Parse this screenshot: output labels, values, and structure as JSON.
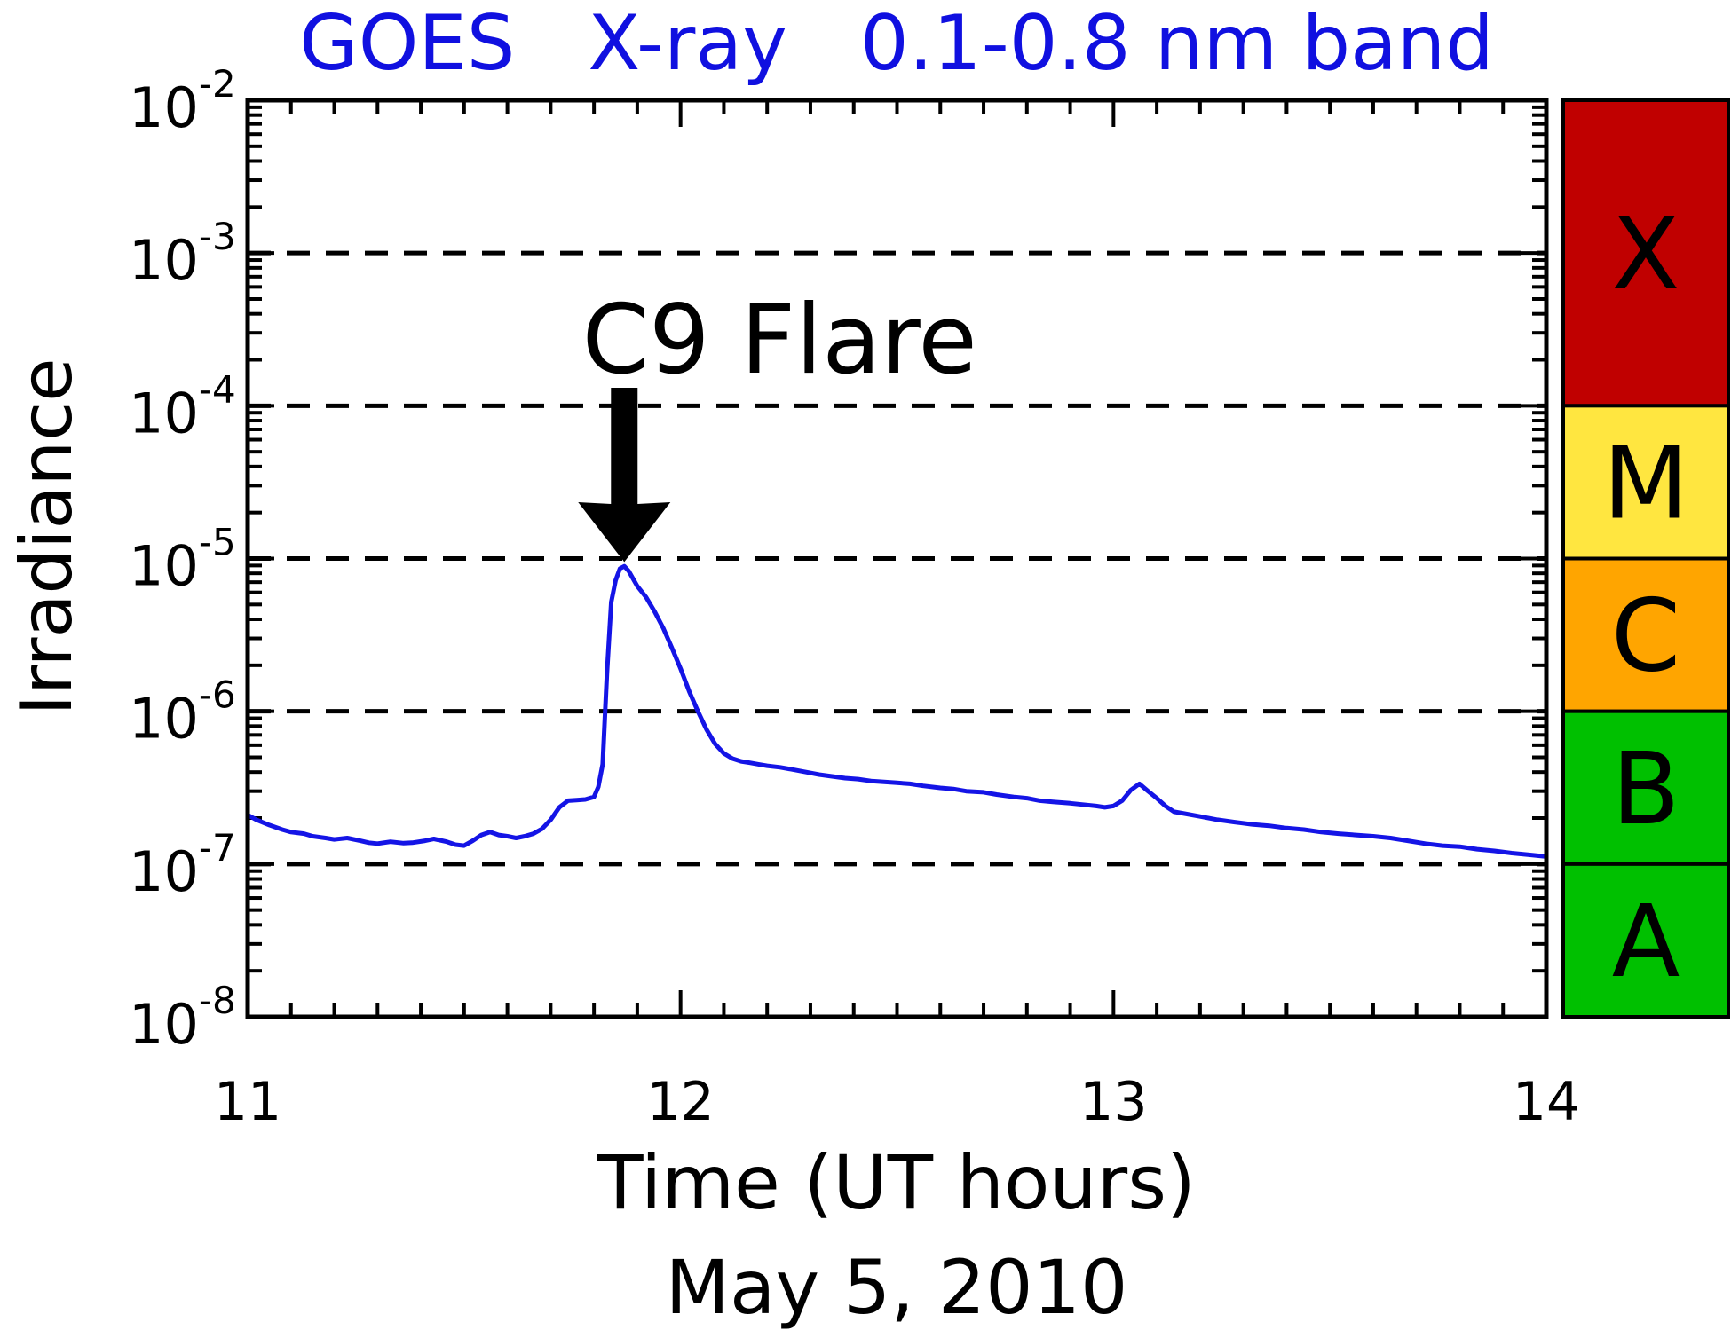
{
  "colors": {
    "title": "#1010e0",
    "series": "#1414e6",
    "axis": "#000000",
    "class_X": "#c00000",
    "class_M": "#ffe640",
    "class_C": "#ffa500",
    "class_B": "#00c000",
    "class_A": "#00c000"
  },
  "chart_data": {
    "type": "line",
    "title": "GOES   X-ray   0.1-0.8 nm band",
    "xlabel": "Time (UT hours)",
    "date_label": "May 5, 2010",
    "ylabel": "Irradiance",
    "xlim": [
      11,
      14
    ],
    "ylim": [
      1e-08,
      0.01
    ],
    "yscale": "log",
    "grid": "dashed horizontal lines at 1e-7, 1e-6, 1e-5, 1e-4, 1e-3",
    "x_ticks": [
      {
        "value": 11,
        "label": "11"
      },
      {
        "value": 12,
        "label": "12"
      },
      {
        "value": 13,
        "label": "13"
      },
      {
        "value": 14,
        "label": "14"
      }
    ],
    "y_ticks": [
      {
        "value": 1e-08,
        "base": "10",
        "exp": "-8"
      },
      {
        "value": 1e-07,
        "base": "10",
        "exp": "-7"
      },
      {
        "value": 1e-06,
        "base": "10",
        "exp": "-6"
      },
      {
        "value": 1e-05,
        "base": "10",
        "exp": "-5"
      },
      {
        "value": 0.0001,
        "base": "10",
        "exp": "-4"
      },
      {
        "value": 0.001,
        "base": "10",
        "exp": "-3"
      },
      {
        "value": 0.01,
        "base": "10",
        "exp": "-2"
      }
    ],
    "annotation": {
      "text": "C9 Flare",
      "x": 11.87,
      "y": 9e-06
    },
    "flare_classes": [
      {
        "label": "X",
        "min": 0.0001,
        "max": 0.01
      },
      {
        "label": "M",
        "min": 1e-05,
        "max": 0.0001
      },
      {
        "label": "C",
        "min": 1e-06,
        "max": 1e-05
      },
      {
        "label": "B",
        "min": 1e-07,
        "max": 1e-06
      },
      {
        "label": "A",
        "min": 1e-08,
        "max": 1e-07
      }
    ],
    "series": [
      {
        "x": [
          11.0,
          11.02,
          11.05,
          11.08,
          11.1,
          11.13,
          11.15,
          11.18,
          11.2,
          11.23,
          11.26,
          11.28,
          11.3,
          11.33,
          11.36,
          11.38,
          11.41,
          11.43,
          11.46,
          11.48,
          11.5,
          11.52,
          11.54,
          11.56,
          11.58,
          11.6,
          11.62,
          11.64,
          11.66,
          11.68,
          11.7,
          11.72,
          11.74,
          11.76,
          11.78,
          11.8,
          11.81,
          11.82,
          11.83,
          11.84,
          11.85,
          11.86,
          11.87,
          11.88,
          11.89,
          11.9,
          11.92,
          11.94,
          11.96,
          11.98,
          12.0,
          12.02,
          12.04,
          12.06,
          12.08,
          12.1,
          12.12,
          12.14,
          12.16,
          12.18,
          12.2,
          12.23,
          12.26,
          12.29,
          12.32,
          12.35,
          12.38,
          12.41,
          12.44,
          12.47,
          12.5,
          12.53,
          12.56,
          12.6,
          12.63,
          12.66,
          12.7,
          12.73,
          12.77,
          12.8,
          12.83,
          12.86,
          12.9,
          12.93,
          12.96,
          12.98,
          13.0,
          13.02,
          13.04,
          13.06,
          13.08,
          13.1,
          13.12,
          13.14,
          13.16,
          13.2,
          13.24,
          13.28,
          13.32,
          13.36,
          13.4,
          13.44,
          13.48,
          13.52,
          13.56,
          13.6,
          13.64,
          13.68,
          13.72,
          13.76,
          13.8,
          13.84,
          13.88,
          13.92,
          13.96,
          14.0
        ],
        "values": [
          2.1e-07,
          1.95e-07,
          1.8e-07,
          1.68e-07,
          1.62e-07,
          1.58e-07,
          1.52e-07,
          1.48e-07,
          1.45e-07,
          1.48e-07,
          1.42e-07,
          1.38e-07,
          1.36e-07,
          1.4e-07,
          1.37e-07,
          1.38e-07,
          1.42e-07,
          1.46e-07,
          1.4e-07,
          1.34e-07,
          1.32e-07,
          1.42e-07,
          1.55e-07,
          1.62e-07,
          1.55e-07,
          1.52e-07,
          1.48e-07,
          1.52e-07,
          1.58e-07,
          1.7e-07,
          1.95e-07,
          2.35e-07,
          2.6e-07,
          2.62e-07,
          2.65e-07,
          2.75e-07,
          3.2e-07,
          4.5e-07,
          1.8e-06,
          5.2e-06,
          7.2e-06,
          8.6e-06,
          8.9e-06,
          8.3e-06,
          7.4e-06,
          6.6e-06,
          5.6e-06,
          4.5e-06,
          3.5e-06,
          2.6e-06,
          1.9e-06,
          1.35e-06,
          1e-06,
          7.6e-07,
          6.1e-07,
          5.3e-07,
          4.9e-07,
          4.7e-07,
          4.6e-07,
          4.5e-07,
          4.4e-07,
          4.3e-07,
          4.15e-07,
          4e-07,
          3.85e-07,
          3.75e-07,
          3.65e-07,
          3.6e-07,
          3.5e-07,
          3.45e-07,
          3.4e-07,
          3.35e-07,
          3.25e-07,
          3.15e-07,
          3.1e-07,
          3e-07,
          2.95e-07,
          2.85e-07,
          2.75e-07,
          2.7e-07,
          2.6e-07,
          2.55e-07,
          2.5e-07,
          2.45e-07,
          2.4e-07,
          2.35e-07,
          2.4e-07,
          2.6e-07,
          3.05e-07,
          3.35e-07,
          3e-07,
          2.7e-07,
          2.4e-07,
          2.2e-07,
          2.15e-07,
          2.05e-07,
          1.95e-07,
          1.88e-07,
          1.82e-07,
          1.78e-07,
          1.72e-07,
          1.68e-07,
          1.62e-07,
          1.58e-07,
          1.55e-07,
          1.52e-07,
          1.48e-07,
          1.42e-07,
          1.36e-07,
          1.32e-07,
          1.3e-07,
          1.25e-07,
          1.22e-07,
          1.18e-07,
          1.15e-07,
          1.12e-07
        ]
      }
    ]
  }
}
